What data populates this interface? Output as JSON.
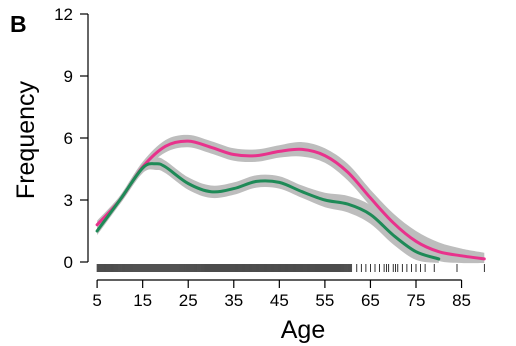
{
  "chart_data": {
    "type": "line",
    "panel_label": "B",
    "xlabel": "Age",
    "ylabel": "Frequency",
    "xlim": [
      3,
      93
    ],
    "ylim": [
      0,
      12
    ],
    "x_ticks": [
      5,
      15,
      25,
      35,
      45,
      55,
      65,
      75,
      85
    ],
    "y_ticks": [
      0,
      3,
      6,
      9,
      12
    ],
    "grid": false,
    "legend": "none",
    "colors": {
      "magenta": "#e8328c",
      "green": "#1e8a57",
      "ribbon": "#bdbdbd",
      "rug": "#000000"
    },
    "series": [
      {
        "color": "magenta",
        "x": [
          5,
          10,
          15,
          20,
          25,
          30,
          35,
          40,
          45,
          50,
          55,
          60,
          65,
          70,
          75,
          80,
          85,
          90
        ],
        "y": [
          1.8,
          3.0,
          4.6,
          5.6,
          5.85,
          5.55,
          5.2,
          5.15,
          5.35,
          5.45,
          5.15,
          4.35,
          3.1,
          1.9,
          1.0,
          0.5,
          0.3,
          0.15
        ],
        "band": [
          0.2,
          0.2,
          0.25,
          0.3,
          0.3,
          0.3,
          0.3,
          0.3,
          0.3,
          0.35,
          0.35,
          0.4,
          0.4,
          0.45,
          0.5,
          0.45,
          0.35,
          0.3
        ]
      },
      {
        "color": "green",
        "x": [
          5,
          10,
          15,
          18,
          20,
          25,
          30,
          35,
          40,
          45,
          50,
          55,
          60,
          65,
          70,
          75,
          80
        ],
        "y": [
          1.5,
          3.0,
          4.55,
          4.75,
          4.6,
          3.8,
          3.4,
          3.55,
          3.9,
          3.85,
          3.4,
          3.0,
          2.8,
          2.3,
          1.3,
          0.5,
          0.15
        ],
        "band": [
          0.2,
          0.2,
          0.25,
          0.3,
          0.3,
          0.3,
          0.3,
          0.3,
          0.3,
          0.3,
          0.3,
          0.35,
          0.4,
          0.45,
          0.45,
          0.4,
          0.3
        ]
      }
    ],
    "rug": {
      "dense": [
        [
          5,
          61
        ]
      ],
      "sparse": [
        62,
        63,
        64,
        65,
        66,
        67,
        68,
        68.5,
        69,
        70,
        70.5,
        71,
        72,
        73,
        74,
        75,
        76,
        77,
        79,
        84,
        90
      ]
    }
  }
}
